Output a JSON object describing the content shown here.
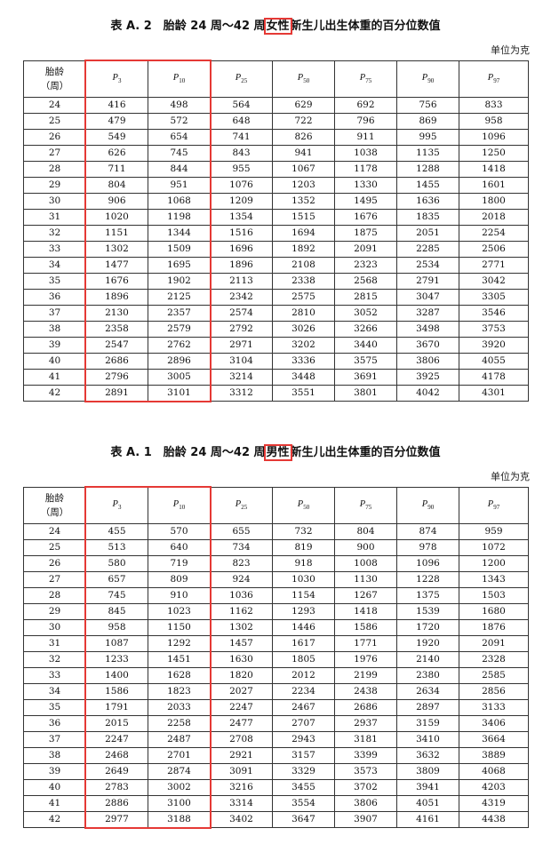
{
  "tables": [
    {
      "title_prefix": "表 A. 2　胎龄 24 周～42 周",
      "title_highlight": "女性",
      "title_suffix": "新生儿出生体重的百分位数值",
      "unit": "单位为克",
      "header": {
        "age_label_line1": "胎龄",
        "age_label_line2": "（周）",
        "percentiles": [
          {
            "p": "P",
            "sub": "3"
          },
          {
            "p": "P",
            "sub": "10"
          },
          {
            "p": "P",
            "sub": "25"
          },
          {
            "p": "P",
            "sub": "50"
          },
          {
            "p": "P",
            "sub": "75"
          },
          {
            "p": "P",
            "sub": "90"
          },
          {
            "p": "P",
            "sub": "97"
          }
        ]
      },
      "rows": [
        [
          "24",
          "416",
          "498",
          "564",
          "629",
          "692",
          "756",
          "833"
        ],
        [
          "25",
          "479",
          "572",
          "648",
          "722",
          "796",
          "869",
          "958"
        ],
        [
          "26",
          "549",
          "654",
          "741",
          "826",
          "911",
          "995",
          "1096"
        ],
        [
          "27",
          "626",
          "745",
          "843",
          "941",
          "1038",
          "1135",
          "1250"
        ],
        [
          "28",
          "711",
          "844",
          "955",
          "1067",
          "1178",
          "1288",
          "1418"
        ],
        [
          "29",
          "804",
          "951",
          "1076",
          "1203",
          "1330",
          "1455",
          "1601"
        ],
        [
          "30",
          "906",
          "1068",
          "1209",
          "1352",
          "1495",
          "1636",
          "1800"
        ],
        [
          "31",
          "1020",
          "1198",
          "1354",
          "1515",
          "1676",
          "1835",
          "2018"
        ],
        [
          "32",
          "1151",
          "1344",
          "1516",
          "1694",
          "1875",
          "2051",
          "2254"
        ],
        [
          "33",
          "1302",
          "1509",
          "1696",
          "1892",
          "2091",
          "2285",
          "2506"
        ],
        [
          "34",
          "1477",
          "1695",
          "1896",
          "2108",
          "2323",
          "2534",
          "2771"
        ],
        [
          "35",
          "1676",
          "1902",
          "2113",
          "2338",
          "2568",
          "2791",
          "3042"
        ],
        [
          "36",
          "1896",
          "2125",
          "2342",
          "2575",
          "2815",
          "3047",
          "3305"
        ],
        [
          "37",
          "2130",
          "2357",
          "2574",
          "2810",
          "3052",
          "3287",
          "3546"
        ],
        [
          "38",
          "2358",
          "2579",
          "2792",
          "3026",
          "3266",
          "3498",
          "3753"
        ],
        [
          "39",
          "2547",
          "2762",
          "2971",
          "3202",
          "3440",
          "3670",
          "3920"
        ],
        [
          "40",
          "2686",
          "2896",
          "3104",
          "3336",
          "3575",
          "3806",
          "4055"
        ],
        [
          "41",
          "2796",
          "3005",
          "3214",
          "3448",
          "3691",
          "3925",
          "4178"
        ],
        [
          "42",
          "2891",
          "3101",
          "3312",
          "3551",
          "3801",
          "4042",
          "4301"
        ]
      ]
    },
    {
      "title_prefix": "表 A. 1　胎龄 24 周～42 周",
      "title_highlight": "男性",
      "title_suffix": "新生儿出生体重的百分位数值",
      "unit": "单位为克",
      "header": {
        "age_label_line1": "胎龄",
        "age_label_line2": "（周）",
        "percentiles": [
          {
            "p": "P",
            "sub": "3"
          },
          {
            "p": "P",
            "sub": "10"
          },
          {
            "p": "P",
            "sub": "25"
          },
          {
            "p": "P",
            "sub": "50"
          },
          {
            "p": "P",
            "sub": "75"
          },
          {
            "p": "P",
            "sub": "90"
          },
          {
            "p": "P",
            "sub": "97"
          }
        ]
      },
      "rows": [
        [
          "24",
          "455",
          "570",
          "655",
          "732",
          "804",
          "874",
          "959"
        ],
        [
          "25",
          "513",
          "640",
          "734",
          "819",
          "900",
          "978",
          "1072"
        ],
        [
          "26",
          "580",
          "719",
          "823",
          "918",
          "1008",
          "1096",
          "1200"
        ],
        [
          "27",
          "657",
          "809",
          "924",
          "1030",
          "1130",
          "1228",
          "1343"
        ],
        [
          "28",
          "745",
          "910",
          "1036",
          "1154",
          "1267",
          "1375",
          "1503"
        ],
        [
          "29",
          "845",
          "1023",
          "1162",
          "1293",
          "1418",
          "1539",
          "1680"
        ],
        [
          "30",
          "958",
          "1150",
          "1302",
          "1446",
          "1586",
          "1720",
          "1876"
        ],
        [
          "31",
          "1087",
          "1292",
          "1457",
          "1617",
          "1771",
          "1920",
          "2091"
        ],
        [
          "32",
          "1233",
          "1451",
          "1630",
          "1805",
          "1976",
          "2140",
          "2328"
        ],
        [
          "33",
          "1400",
          "1628",
          "1820",
          "2012",
          "2199",
          "2380",
          "2585"
        ],
        [
          "34",
          "1586",
          "1823",
          "2027",
          "2234",
          "2438",
          "2634",
          "2856"
        ],
        [
          "35",
          "1791",
          "2033",
          "2247",
          "2467",
          "2686",
          "2897",
          "3133"
        ],
        [
          "36",
          "2015",
          "2258",
          "2477",
          "2707",
          "2937",
          "3159",
          "3406"
        ],
        [
          "37",
          "2247",
          "2487",
          "2708",
          "2943",
          "3181",
          "3410",
          "3664"
        ],
        [
          "38",
          "2468",
          "2701",
          "2921",
          "3157",
          "3399",
          "3632",
          "3889"
        ],
        [
          "39",
          "2649",
          "2874",
          "3091",
          "3329",
          "3573",
          "3809",
          "4068"
        ],
        [
          "40",
          "2783",
          "3002",
          "3216",
          "3455",
          "3702",
          "3941",
          "4203"
        ],
        [
          "41",
          "2886",
          "3100",
          "3314",
          "3554",
          "3806",
          "4051",
          "4319"
        ],
        [
          "42",
          "2977",
          "3188",
          "3402",
          "3647",
          "3907",
          "4161",
          "4438"
        ]
      ]
    }
  ],
  "highlight_color": "#e53935"
}
